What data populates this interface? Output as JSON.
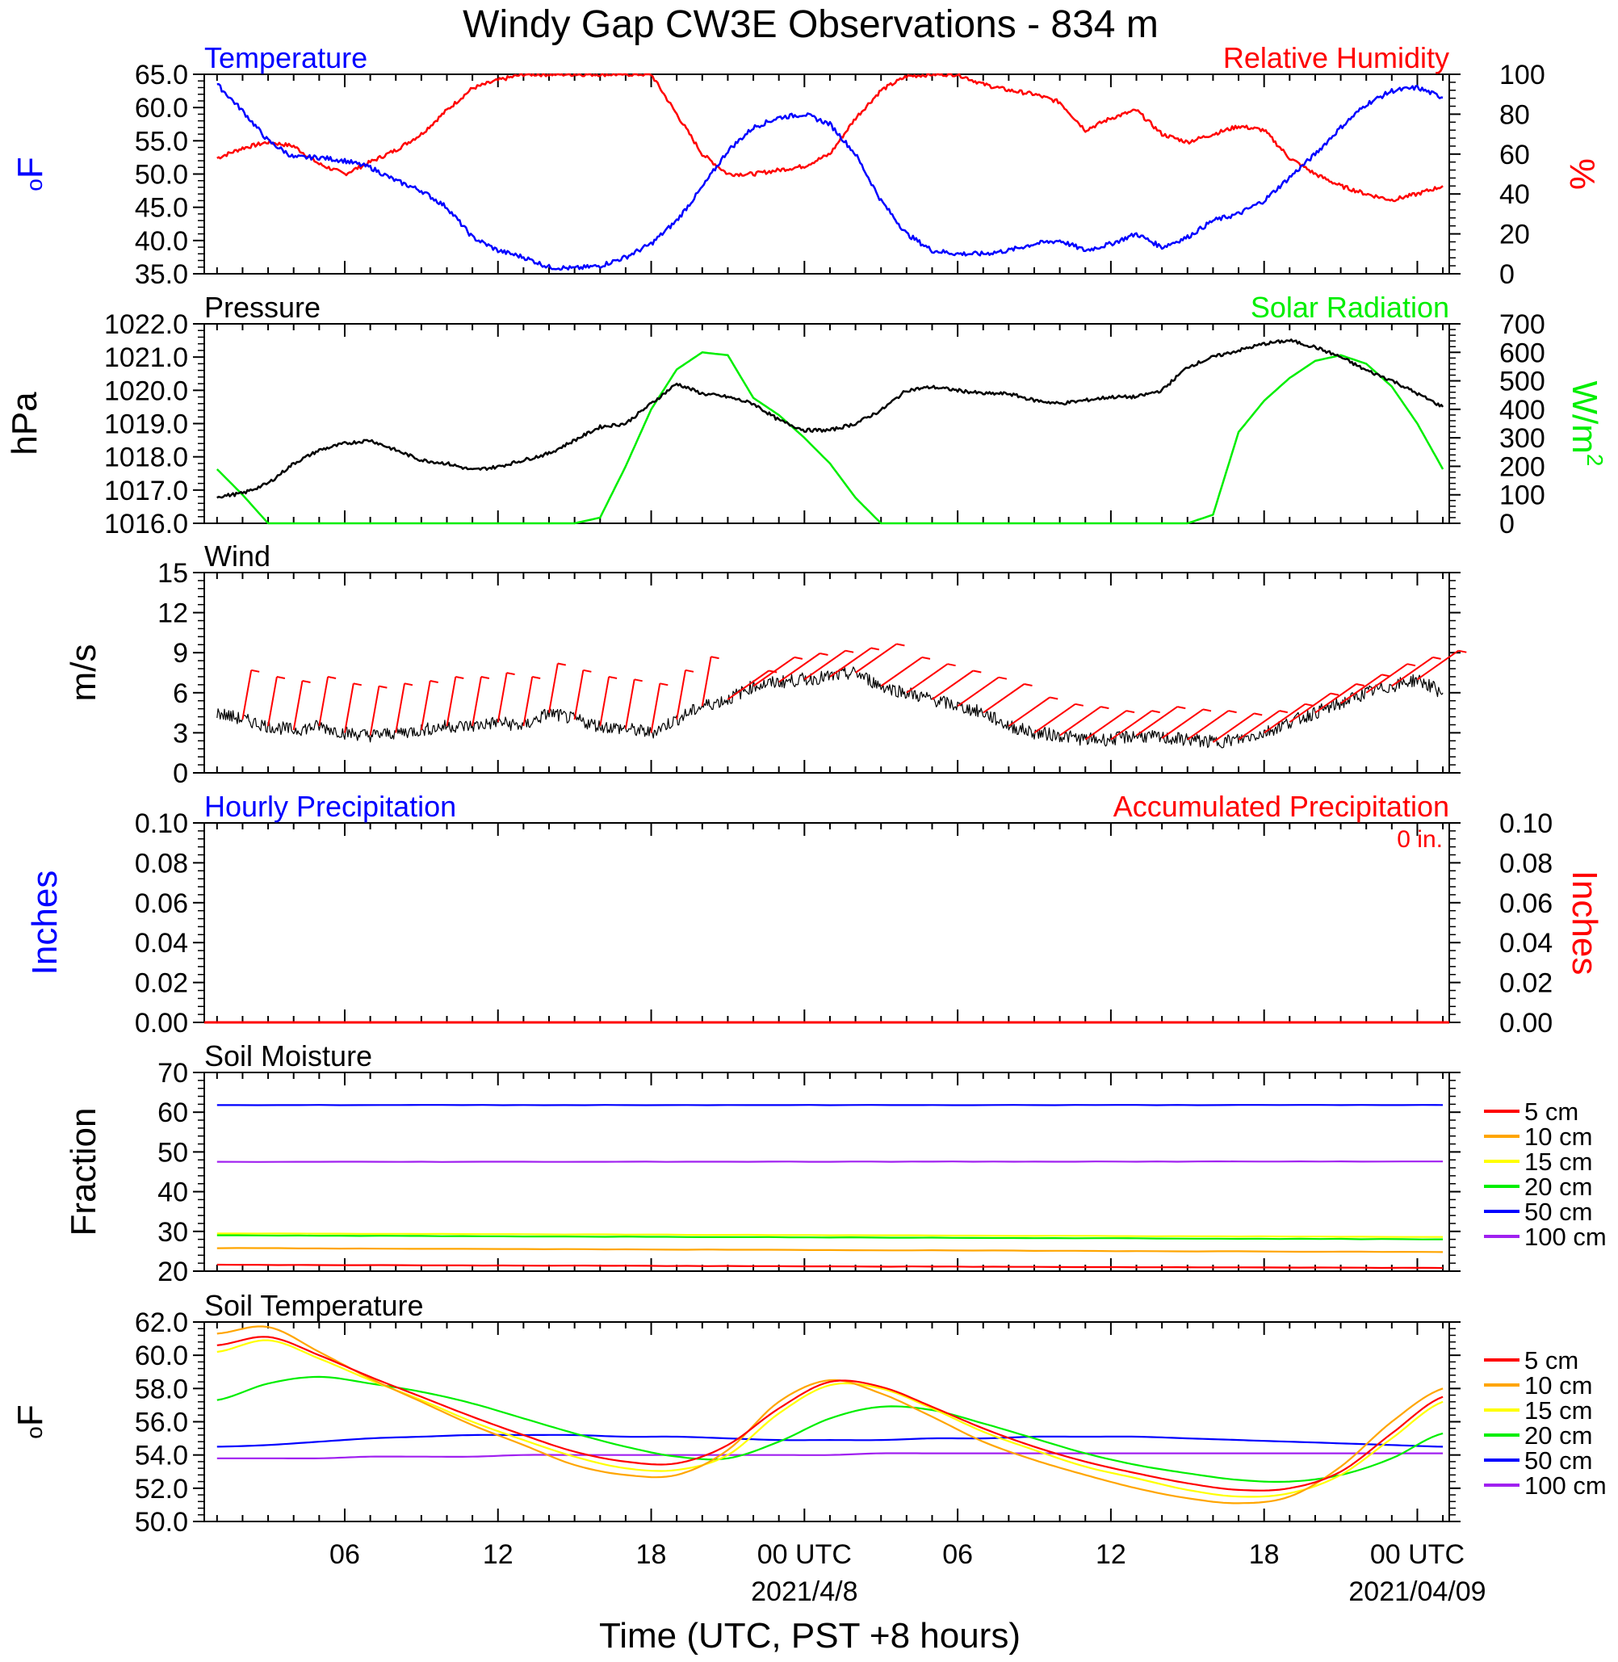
{
  "title": "Windy Gap CW3E Observations - 834 m",
  "colors": {
    "blue": "#0000ff",
    "red": "#ff0000",
    "green": "#00ee00",
    "black": "#000000",
    "orange": "#ffa500",
    "yellow": "#ffff00",
    "purple": "#a020f0"
  },
  "xaxis": {
    "tick_labels": [
      "06",
      "12",
      "18",
      "00 UTC",
      "06",
      "12",
      "18",
      "00 UTC"
    ],
    "date_labels": [
      "2021/4/8",
      "2021/04/09"
    ],
    "label": "Time (UTC, PST +8 hours)"
  },
  "chart_data": [
    {
      "type": "line",
      "panel": "temperature-humidity",
      "left_title": "Temperature",
      "right_title": "Relative Humidity",
      "left_unit_base": "o",
      "left_unit": "F",
      "right_unit": "%",
      "left_ticks": [
        "65.0",
        "60.0",
        "55.0",
        "50.0",
        "45.0",
        "40.0",
        "35.0"
      ],
      "right_ticks": [
        "100",
        "80",
        "60",
        "40",
        "20",
        "0"
      ],
      "ylim_left": [
        35,
        65
      ],
      "ylim_right": [
        0,
        100
      ],
      "x_hours": [
        1,
        2,
        3,
        4,
        5,
        6,
        7,
        8,
        9,
        10,
        11,
        12,
        13,
        14,
        15,
        16,
        17,
        18,
        19,
        20,
        21,
        22,
        23,
        24,
        25,
        26,
        27,
        28,
        29,
        30,
        31,
        32,
        33,
        34,
        35,
        36,
        37,
        38,
        39,
        40,
        41,
        42,
        43,
        44,
        45,
        46,
        47,
        48,
        49
      ],
      "series": [
        {
          "name": "Temperature",
          "axis": "left",
          "color": "blue",
          "values": [
            63.5,
            59.5,
            55.0,
            52.5,
            52.5,
            52.0,
            51.0,
            49.0,
            47.5,
            45.0,
            40.5,
            38.5,
            37.5,
            36.0,
            35.8,
            36.2,
            37.5,
            39.5,
            43.0,
            48.0,
            53.5,
            57.0,
            58.5,
            59.0,
            57.5,
            53.0,
            46.0,
            41.0,
            38.5,
            38.0,
            38.0,
            38.5,
            39.5,
            40.0,
            38.5,
            39.5,
            41.0,
            39.0,
            40.5,
            43.0,
            44.0,
            46.0,
            49.5,
            53.0,
            57.0,
            60.5,
            62.5,
            63.0,
            61.5
          ]
        },
        {
          "name": "Relative Humidity",
          "axis": "right",
          "color": "red",
          "values": [
            58,
            63,
            66,
            64,
            55,
            50,
            56,
            62,
            70,
            82,
            93,
            97,
            100,
            100,
            100,
            100,
            100,
            100,
            80,
            60,
            50,
            50,
            52,
            54,
            60,
            78,
            92,
            99,
            100,
            100,
            95,
            92,
            90,
            86,
            72,
            78,
            82,
            70,
            66,
            70,
            74,
            72,
            58,
            50,
            44,
            40,
            37,
            40,
            44
          ]
        }
      ]
    },
    {
      "type": "line",
      "panel": "pressure-solar",
      "left_title": "Pressure",
      "right_title": "Solar Radiation",
      "left_unit": "hPa",
      "right_unit_base": "W/m",
      "right_unit_sup": "2",
      "left_ticks": [
        "1022.0",
        "1021.0",
        "1020.0",
        "1019.0",
        "1018.0",
        "1017.0",
        "1016.0"
      ],
      "right_ticks": [
        "700",
        "600",
        "500",
        "400",
        "300",
        "200",
        "100",
        "0"
      ],
      "ylim_left": [
        1016,
        1022
      ],
      "ylim_right": [
        0,
        700
      ],
      "x_hours": [
        1,
        2,
        3,
        4,
        5,
        6,
        7,
        8,
        9,
        10,
        11,
        12,
        13,
        14,
        15,
        16,
        17,
        18,
        19,
        20,
        21,
        22,
        23,
        24,
        25,
        26,
        27,
        28,
        29,
        30,
        31,
        32,
        33,
        34,
        35,
        36,
        37,
        38,
        39,
        40,
        41,
        42,
        43,
        44,
        45,
        46,
        47,
        48,
        49
      ],
      "series": [
        {
          "name": "Pressure",
          "axis": "left",
          "color": "black",
          "values": [
            1016.8,
            1016.9,
            1017.2,
            1017.8,
            1018.2,
            1018.4,
            1018.5,
            1018.2,
            1017.9,
            1017.8,
            1017.6,
            1017.7,
            1017.9,
            1018.1,
            1018.5,
            1018.9,
            1019.0,
            1019.6,
            1020.2,
            1019.9,
            1019.8,
            1019.6,
            1019.1,
            1018.8,
            1018.8,
            1019.0,
            1019.4,
            1020.0,
            1020.1,
            1020.0,
            1019.9,
            1019.9,
            1019.7,
            1019.6,
            1019.7,
            1019.8,
            1019.8,
            1020.0,
            1020.7,
            1021.0,
            1021.2,
            1021.4,
            1021.5,
            1021.3,
            1021.0,
            1020.6,
            1020.3,
            1019.9,
            1019.5
          ]
        },
        {
          "name": "Solar Radiation",
          "axis": "right",
          "color": "green",
          "values": [
            190,
            100,
            0,
            0,
            0,
            0,
            0,
            0,
            0,
            0,
            0,
            0,
            0,
            0,
            0,
            20,
            200,
            400,
            540,
            600,
            590,
            440,
            380,
            300,
            210,
            90,
            0,
            0,
            0,
            0,
            0,
            0,
            0,
            0,
            0,
            0,
            0,
            0,
            0,
            30,
            320,
            430,
            510,
            570,
            590,
            560,
            480,
            350,
            190
          ]
        }
      ]
    },
    {
      "type": "line",
      "panel": "wind",
      "left_title": "Wind",
      "left_unit": "m/s",
      "left_ticks": [
        "15",
        "12",
        "9",
        "6",
        "3",
        "0"
      ],
      "ylim": [
        0,
        15
      ],
      "x_hours": [
        1,
        2,
        3,
        4,
        5,
        6,
        7,
        8,
        9,
        10,
        11,
        12,
        13,
        14,
        15,
        16,
        17,
        18,
        19,
        20,
        21,
        22,
        23,
        24,
        25,
        26,
        27,
        28,
        29,
        30,
        31,
        32,
        33,
        34,
        35,
        36,
        37,
        38,
        39,
        40,
        41,
        42,
        43,
        44,
        45,
        46,
        47,
        48,
        49
      ],
      "series": [
        {
          "name": "Wind speed",
          "color": "black",
          "values": [
            4.5,
            4.0,
            3.5,
            3.2,
            3.5,
            3.0,
            2.8,
            3.0,
            3.2,
            3.5,
            3.5,
            3.8,
            3.5,
            4.5,
            4.0,
            3.5,
            3.3,
            3.0,
            4.0,
            5.0,
            5.5,
            6.5,
            6.8,
            7.0,
            7.2,
            7.5,
            6.5,
            6.0,
            5.5,
            5.0,
            4.5,
            3.5,
            3.0,
            2.8,
            2.5,
            2.5,
            2.8,
            2.6,
            2.5,
            2.3,
            2.5,
            3.0,
            3.8,
            4.5,
            5.2,
            6.0,
            6.5,
            7.0,
            6.0
          ]
        }
      ],
      "barb_color": "red"
    },
    {
      "type": "bar",
      "panel": "precipitation",
      "left_title": "Hourly Precipitation",
      "right_title": "Accumulated Precipitation",
      "total_label": "0 in.",
      "left_unit": "Inches",
      "right_unit": "Inches",
      "left_ticks": [
        "0.10",
        "0.08",
        "0.06",
        "0.04",
        "0.02",
        "0.00"
      ],
      "right_ticks": [
        "0.10",
        "0.08",
        "0.06",
        "0.04",
        "0.02",
        "0.00"
      ],
      "ylim": [
        0,
        0.1
      ],
      "series": [
        {
          "name": "Hourly Precipitation",
          "color": "blue",
          "values": [
            0
          ]
        },
        {
          "name": "Accumulated Precipitation",
          "color": "red",
          "values": [
            0
          ]
        }
      ]
    },
    {
      "type": "line",
      "panel": "soil-moisture",
      "left_title": "Soil Moisture",
      "left_unit": "Fraction",
      "left_ticks": [
        "70",
        "60",
        "50",
        "40",
        "30",
        "20"
      ],
      "ylim": [
        20,
        70
      ],
      "x_hours": [
        1,
        49
      ],
      "legend": [
        "5 cm",
        "10 cm",
        "15 cm",
        "20 cm",
        "50 cm",
        "100 cm"
      ],
      "series": [
        {
          "name": "5 cm",
          "color": "red",
          "values": [
            21.6,
            20.8
          ]
        },
        {
          "name": "10 cm",
          "color": "orange",
          "values": [
            25.8,
            24.8
          ]
        },
        {
          "name": "15 cm",
          "color": "yellow",
          "values": [
            29.5,
            28.6
          ]
        },
        {
          "name": "20 cm",
          "color": "green",
          "values": [
            29.0,
            28.0
          ]
        },
        {
          "name": "50 cm",
          "color": "blue",
          "values": [
            61.8,
            61.8
          ]
        },
        {
          "name": "100 cm",
          "color": "purple",
          "values": [
            47.5,
            47.6
          ]
        }
      ]
    },
    {
      "type": "line",
      "panel": "soil-temperature",
      "left_title": "Soil Temperature",
      "left_unit_base": "o",
      "left_unit": "F",
      "left_ticks": [
        "62.0",
        "60.0",
        "58.0",
        "56.0",
        "54.0",
        "52.0",
        "50.0"
      ],
      "ylim": [
        50,
        62
      ],
      "x_hours": [
        1,
        3,
        5,
        7,
        9,
        11,
        13,
        15,
        17,
        19,
        21,
        23,
        25,
        27,
        29,
        31,
        33,
        35,
        37,
        39,
        41,
        43,
        45,
        47,
        49
      ],
      "legend": [
        "5 cm",
        "10 cm",
        "15 cm",
        "20 cm",
        "50 cm",
        "100 cm"
      ],
      "series": [
        {
          "name": "5 cm",
          "color": "red",
          "values": [
            60.6,
            61.1,
            60.0,
            58.7,
            57.5,
            56.3,
            55.2,
            54.2,
            53.6,
            53.5,
            54.6,
            56.8,
            58.4,
            58.1,
            56.9,
            55.6,
            54.5,
            53.6,
            52.9,
            52.3,
            51.9,
            52.0,
            53.0,
            55.3,
            57.5
          ]
        },
        {
          "name": "10 cm",
          "color": "orange",
          "values": [
            61.3,
            61.7,
            60.2,
            58.6,
            57.2,
            55.8,
            54.6,
            53.4,
            52.8,
            52.8,
            54.3,
            57.2,
            58.5,
            57.7,
            56.3,
            54.8,
            53.7,
            52.8,
            52.0,
            51.4,
            51.1,
            51.5,
            53.3,
            56.0,
            58.0
          ]
        },
        {
          "name": "15 cm",
          "color": "yellow",
          "values": [
            60.2,
            60.9,
            59.8,
            58.5,
            57.3,
            56.0,
            54.9,
            53.9,
            53.2,
            53.1,
            54.0,
            56.5,
            58.2,
            58.0,
            56.8,
            55.4,
            54.3,
            53.3,
            52.6,
            51.9,
            51.5,
            51.7,
            52.8,
            55.0,
            57.2
          ]
        },
        {
          "name": "20 cm",
          "color": "green",
          "values": [
            57.3,
            58.3,
            58.7,
            58.3,
            57.8,
            57.1,
            56.2,
            55.3,
            54.5,
            53.9,
            53.8,
            54.8,
            56.2,
            56.9,
            56.7,
            55.9,
            55.0,
            54.1,
            53.4,
            52.9,
            52.5,
            52.4,
            52.8,
            53.8,
            55.3
          ]
        },
        {
          "name": "50 cm",
          "color": "blue",
          "values": [
            54.5,
            54.6,
            54.8,
            55.0,
            55.1,
            55.2,
            55.2,
            55.2,
            55.1,
            55.1,
            55.0,
            54.9,
            54.9,
            54.9,
            55.0,
            55.0,
            55.1,
            55.1,
            55.1,
            55.0,
            54.9,
            54.8,
            54.7,
            54.6,
            54.5
          ]
        },
        {
          "name": "100 cm",
          "color": "purple",
          "values": [
            53.8,
            53.8,
            53.8,
            53.9,
            53.9,
            53.9,
            54.0,
            54.0,
            54.0,
            54.0,
            54.0,
            54.0,
            54.0,
            54.1,
            54.1,
            54.1,
            54.1,
            54.1,
            54.1,
            54.1,
            54.1,
            54.1,
            54.1,
            54.1,
            54.1
          ]
        }
      ]
    }
  ]
}
